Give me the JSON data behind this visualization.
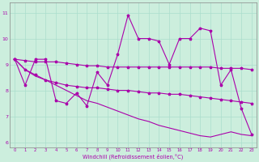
{
  "xlabel": "Windchill (Refroidissement éolien,°C)",
  "background_color": "#cceedd",
  "line_color": "#aa00aa",
  "xdata": [
    0,
    1,
    2,
    3,
    4,
    5,
    6,
    7,
    8,
    9,
    10,
    11,
    12,
    13,
    14,
    15,
    16,
    17,
    18,
    19,
    20,
    21,
    22,
    23
  ],
  "y_main": [
    9.2,
    8.2,
    9.2,
    9.2,
    7.6,
    7.5,
    7.9,
    7.4,
    8.7,
    8.2,
    9.4,
    10.9,
    10.0,
    10.0,
    9.9,
    9.0,
    10.0,
    10.0,
    10.4,
    10.3,
    8.2,
    8.8,
    7.3,
    6.3
  ],
  "y_upper": [
    9.2,
    9.15,
    9.1,
    9.1,
    9.1,
    9.05,
    9.0,
    8.95,
    8.95,
    8.9,
    8.9,
    8.9,
    8.9,
    8.9,
    8.9,
    8.9,
    8.9,
    8.9,
    8.9,
    8.9,
    8.85,
    8.85,
    8.85,
    8.8
  ],
  "y_mid": [
    9.2,
    8.8,
    8.6,
    8.4,
    8.3,
    8.2,
    8.15,
    8.1,
    8.1,
    8.05,
    8.0,
    8.0,
    7.95,
    7.9,
    7.9,
    7.85,
    7.85,
    7.8,
    7.75,
    7.7,
    7.65,
    7.6,
    7.55,
    7.5
  ],
  "y_lower": [
    9.2,
    8.8,
    8.55,
    8.4,
    8.2,
    8.0,
    7.8,
    7.6,
    7.5,
    7.35,
    7.2,
    7.05,
    6.9,
    6.8,
    6.65,
    6.55,
    6.45,
    6.35,
    6.25,
    6.2,
    6.3,
    6.4,
    6.3,
    6.25
  ],
  "ylim": [
    5.8,
    11.4
  ],
  "yticks": [
    6,
    7,
    8,
    9,
    10,
    11
  ],
  "xlim": [
    -0.5,
    23.5
  ],
  "grid_color": "#aaddcc"
}
